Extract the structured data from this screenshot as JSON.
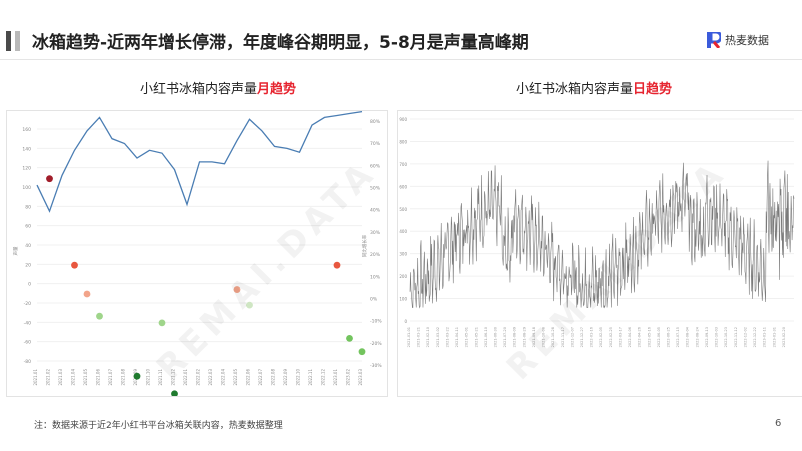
{
  "title": "冰箱趋势-近两年增长停滞，年度峰谷期明显，5-8月是声量高峰期",
  "logo": {
    "text": "热麦数据"
  },
  "watermark": "REMAI.DATA",
  "footnote": "注：数据来源于近2年小红书平台冰箱关联内容，热麦数据整理",
  "page_number": "6",
  "colors": {
    "line": "#4a7db3",
    "daily_line": "#7a7a7a",
    "highlight": "#e6242f"
  },
  "chart_data": [
    {
      "type": "line",
      "title_prefix": "小红书冰箱内容声量",
      "title_highlight": "月趋势",
      "y_ticks": [
        "160",
        "140",
        "120",
        "100",
        "80",
        "60",
        "40",
        "20",
        "0",
        "-20",
        "-40",
        "-60",
        "-80"
      ],
      "y2_ticks": [
        "80%",
        "70%",
        "60%",
        "50%",
        "40%",
        "30%",
        "20%",
        "10%",
        "0%",
        "-10%",
        "-20%",
        "-30%"
      ],
      "ylabel": "声量",
      "y2label": "同比增长率",
      "categories": [
        "2021.01",
        "2021.02",
        "2021.03",
        "2021.04",
        "2021.05",
        "2021.06",
        "2021.07",
        "2021.08",
        "2021.09",
        "2021.10",
        "2021.11",
        "2021.12",
        "2022.01",
        "2022.02",
        "2022.03",
        "2022.04",
        "2022.05",
        "2022.06",
        "2022.07",
        "2022.08",
        "2022.09",
        "2022.10",
        "2022.11",
        "2022.12",
        "2023.01",
        "2023.02",
        "2023.03"
      ],
      "series": [
        {
          "values": [
            102,
            75,
            112,
            138,
            158,
            172,
            150,
            145,
            130,
            138,
            135,
            118,
            82,
            126,
            126,
            124,
            148,
            170,
            158,
            142,
            140,
            136,
            164,
            172,
            174,
            176,
            178
          ]
        },
        {
          "values": [
            null,
            54,
            null,
            15,
            2,
            -8,
            null,
            null,
            -37,
            null,
            -11,
            -48,
            -72,
            null,
            null,
            null,
            4,
            -3,
            null,
            null,
            null,
            null,
            null,
            null,
            15,
            -18,
            -24
          ],
          "note": "growth-rate scatter (%) — approximate"
        }
      ]
    },
    {
      "type": "line",
      "title_prefix": "小红书冰箱内容声量",
      "title_highlight": "日趋势",
      "y_ticks": [
        "900",
        "800",
        "700",
        "600",
        "500",
        "400",
        "300",
        "200",
        "100",
        "0"
      ],
      "x_start": "2021.01.01",
      "x_step_days": 1,
      "n_points": 800
    }
  ]
}
